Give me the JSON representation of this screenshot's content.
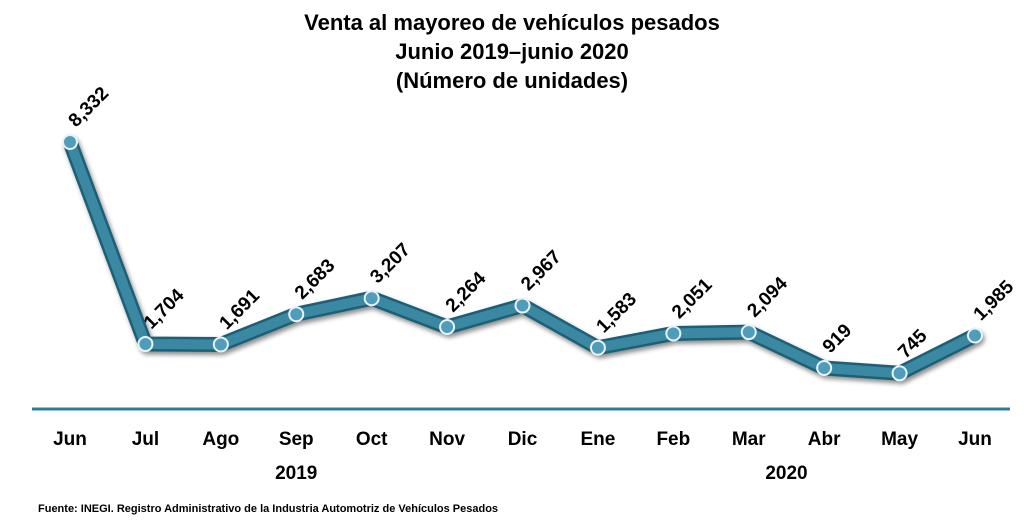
{
  "chart_data": {
    "type": "line",
    "title": [
      "Venta al mayoreo de vehículos pesados",
      "Junio 2019–junio 2020",
      "(Número de unidades)"
    ],
    "categories": [
      "Jun",
      "Jul",
      "Ago",
      "Sep",
      "Oct",
      "Nov",
      "Dic",
      "Ene",
      "Feb",
      "Mar",
      "Abr",
      "May",
      "Jun"
    ],
    "values": [
      8332,
      1704,
      1691,
      2683,
      3207,
      2264,
      2967,
      1583,
      2051,
      2094,
      919,
      745,
      1985
    ],
    "data_labels": [
      "8,332",
      "1,704",
      "1,691",
      "2,683",
      "3,207",
      "2,264",
      "2,967",
      "1,583",
      "2,051",
      "2,094",
      "919",
      "745",
      "1,985"
    ],
    "year_groups": [
      {
        "label": "2019",
        "start": 0,
        "end": 6
      },
      {
        "label": "2020",
        "start": 7,
        "end": 12
      }
    ],
    "ylim": [
      0,
      8700
    ],
    "xlabel": "",
    "ylabel": "",
    "grid": false,
    "legend": "none",
    "colors": {
      "line": "#3b88a3",
      "line_dark": "#1e5f77",
      "axis": "#2f7f96",
      "marker_fill": "#4f9dbb"
    }
  },
  "source": "Fuente: INEGI. Registro Administrativo de la Industria Automotriz de Vehículos Pesados"
}
